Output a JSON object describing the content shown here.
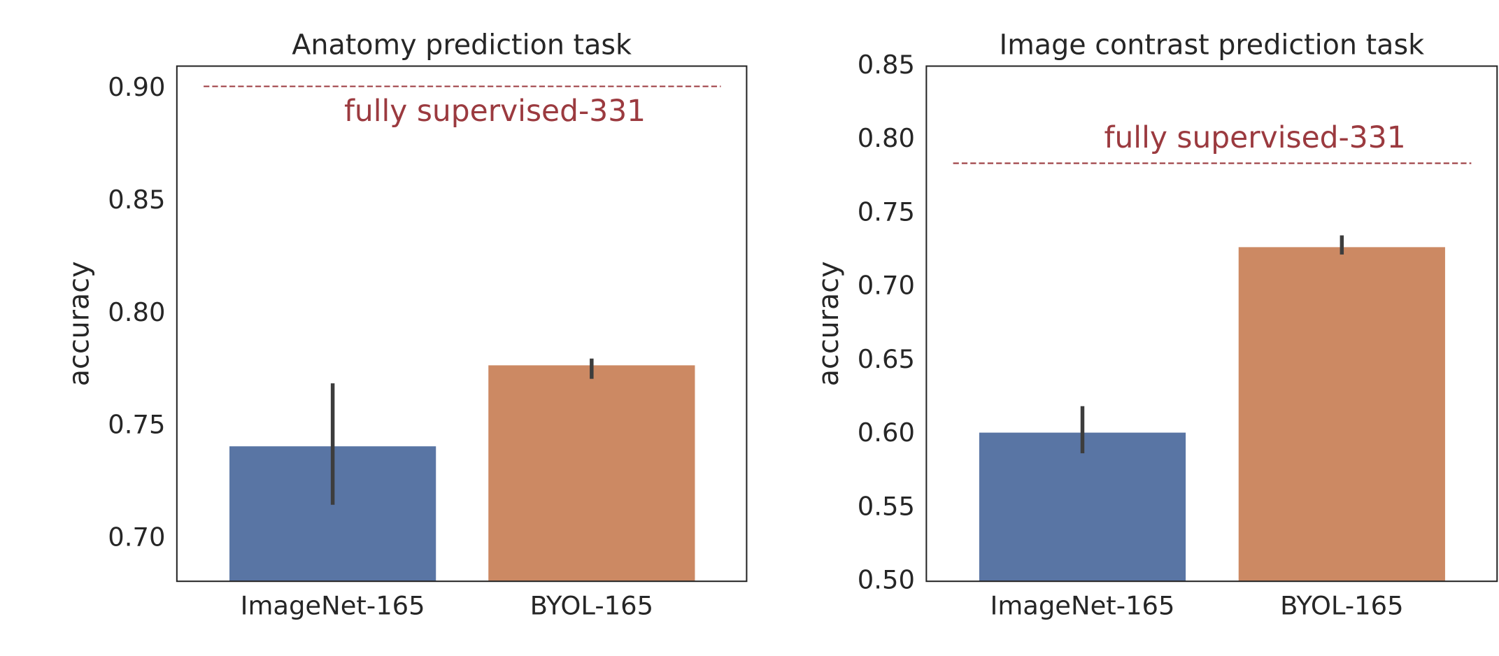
{
  "chart_data": [
    {
      "type": "bar",
      "title": "Anatomy prediction task",
      "ylabel": "accuracy",
      "categories": [
        "ImageNet-165",
        "BYOL-165"
      ],
      "values": [
        0.741,
        0.777
      ],
      "errors": [
        [
          0.715,
          0.769
        ],
        [
          0.771,
          0.78
        ]
      ],
      "colors": [
        "#5975a4",
        "#cc8963"
      ],
      "reference_line": {
        "value": 0.901,
        "label": "fully supervised-331",
        "color": "#9b3a3f"
      },
      "ylim": [
        0.681,
        0.91
      ],
      "yticks": [
        {
          "value": 0.7,
          "label": "0.70"
        },
        0.75,
        {
          "value": 0.8,
          "label": "0.80"
        },
        0.85,
        {
          "value": 0.9,
          "label": "0.90"
        }
      ]
    },
    {
      "type": "bar",
      "title": "Image contrast prediction task",
      "ylabel": "accuracy",
      "categories": [
        "ImageNet-165",
        "BYOL-165"
      ],
      "values": [
        0.601,
        0.727
      ],
      "errors": [
        [
          0.587,
          0.619
        ],
        [
          0.722,
          0.735
        ]
      ],
      "colors": [
        "#5975a4",
        "#cc8963"
      ],
      "reference_line": {
        "value": 0.784,
        "label": "fully supervised-331",
        "color": "#9b3a3f"
      },
      "ylim": [
        0.5,
        0.85
      ],
      "yticks": [
        {
          "value": 0.5,
          "label": "0.50"
        },
        0.55,
        {
          "value": 0.6,
          "label": "0.60"
        },
        0.65,
        {
          "value": 0.7,
          "label": "0.70"
        },
        0.75,
        {
          "value": 0.8,
          "label": "0.80"
        },
        0.85
      ]
    }
  ]
}
